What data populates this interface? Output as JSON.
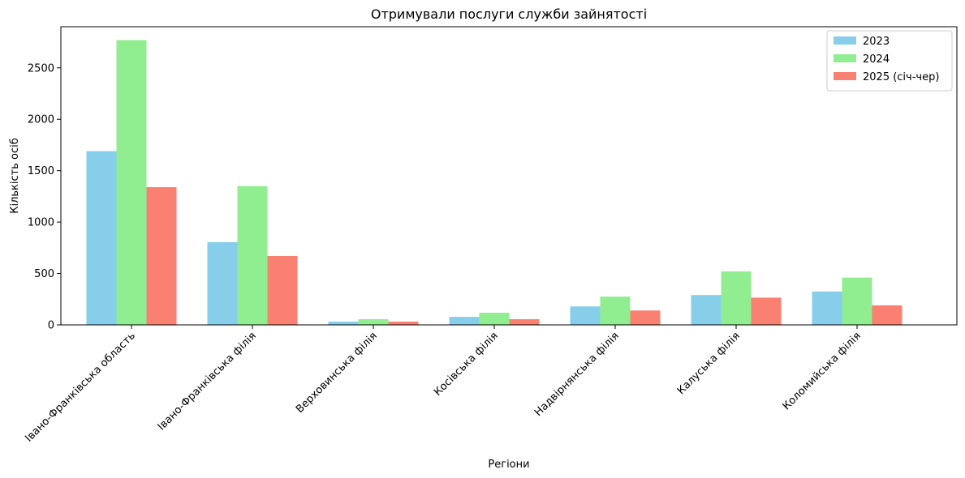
{
  "chart_data": {
    "type": "bar",
    "title": "Отримували послуги служби зайнятості",
    "xlabel": "Регіони",
    "ylabel": "Кількість осіб",
    "categories": [
      "Івано-Франківська область",
      "Івано-Франківська філія",
      "Верховинська філія",
      "Косівська філія",
      "Надвірнянська філія",
      "Калуська філія",
      "Коломийська філія"
    ],
    "series": [
      {
        "name": "2023",
        "color": "#87CEEB",
        "values": [
          1690,
          805,
          32,
          78,
          180,
          290,
          325
        ]
      },
      {
        "name": "2024",
        "color": "#90EE90",
        "values": [
          2770,
          1350,
          55,
          118,
          275,
          520,
          460
        ]
      },
      {
        "name": "2025 (січ-чер)",
        "color": "#FA8072",
        "values": [
          1340,
          670,
          32,
          55,
          140,
          265,
          190
        ]
      }
    ],
    "ylim": [
      0,
      2900
    ],
    "yticks": [
      "0",
      "500",
      "1000",
      "1500",
      "2000",
      "2500"
    ],
    "grid": false,
    "legend_position": "top-right"
  }
}
